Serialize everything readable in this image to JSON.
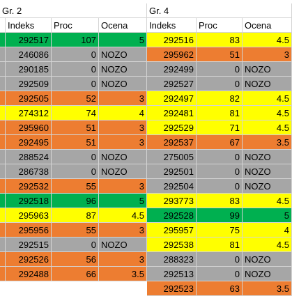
{
  "groups": [
    {
      "title": "Gr. 2",
      "headers": [
        "Indeks",
        "Proc",
        "Ocena"
      ],
      "rows": [
        {
          "indeks": "292517",
          "proc": "107",
          "ocena": "5",
          "color": "green"
        },
        {
          "indeks": "246086",
          "proc": "0",
          "ocena": "NOZO",
          "color": "gray"
        },
        {
          "indeks": "290185",
          "proc": "0",
          "ocena": "NOZO",
          "color": "gray"
        },
        {
          "indeks": "292509",
          "proc": "0",
          "ocena": "NOZO",
          "color": "gray"
        },
        {
          "indeks": "292505",
          "proc": "52",
          "ocena": "3",
          "color": "orange"
        },
        {
          "indeks": "274312",
          "proc": "74",
          "ocena": "4",
          "color": "yellow"
        },
        {
          "indeks": "295960",
          "proc": "51",
          "ocena": "3",
          "color": "orange"
        },
        {
          "indeks": "292495",
          "proc": "51",
          "ocena": "3",
          "color": "orange"
        },
        {
          "indeks": "288524",
          "proc": "0",
          "ocena": "NOZO",
          "color": "gray"
        },
        {
          "indeks": "286738",
          "proc": "0",
          "ocena": "NOZO",
          "color": "gray"
        },
        {
          "indeks": "292532",
          "proc": "55",
          "ocena": "3",
          "color": "orange"
        },
        {
          "indeks": "292518",
          "proc": "96",
          "ocena": "5",
          "color": "green"
        },
        {
          "indeks": "295963",
          "proc": "87",
          "ocena": "4.5",
          "color": "yellow"
        },
        {
          "indeks": "295956",
          "proc": "55",
          "ocena": "3",
          "color": "orange"
        },
        {
          "indeks": "292515",
          "proc": "0",
          "ocena": "NOZO",
          "color": "gray"
        },
        {
          "indeks": "292526",
          "proc": "56",
          "ocena": "3",
          "color": "orange"
        },
        {
          "indeks": "292488",
          "proc": "66",
          "ocena": "3.5",
          "color": "orange"
        }
      ]
    },
    {
      "title": "Gr. 4",
      "headers": [
        "Indeks",
        "Proc",
        "Ocena"
      ],
      "rows": [
        {
          "indeks": "292516",
          "proc": "83",
          "ocena": "4.5",
          "color": "yellow"
        },
        {
          "indeks": "295962",
          "proc": "51",
          "ocena": "3",
          "color": "orange"
        },
        {
          "indeks": "292499",
          "proc": "0",
          "ocena": "NOZO",
          "color": "gray"
        },
        {
          "indeks": "292527",
          "proc": "0",
          "ocena": "NOZO",
          "color": "gray"
        },
        {
          "indeks": "292497",
          "proc": "82",
          "ocena": "4.5",
          "color": "yellow"
        },
        {
          "indeks": "292481",
          "proc": "81",
          "ocena": "4.5",
          "color": "yellow"
        },
        {
          "indeks": "292529",
          "proc": "71",
          "ocena": "4.5",
          "color": "yellow"
        },
        {
          "indeks": "292537",
          "proc": "67",
          "ocena": "3.5",
          "color": "orange"
        },
        {
          "indeks": "275005",
          "proc": "0",
          "ocena": "NOZO",
          "color": "gray"
        },
        {
          "indeks": "292501",
          "proc": "0",
          "ocena": "NOZO",
          "color": "gray"
        },
        {
          "indeks": "292504",
          "proc": "0",
          "ocena": "NOZO",
          "color": "gray"
        },
        {
          "indeks": "293773",
          "proc": "83",
          "ocena": "4.5",
          "color": "yellow"
        },
        {
          "indeks": "292528",
          "proc": "99",
          "ocena": "5",
          "color": "green"
        },
        {
          "indeks": "295957",
          "proc": "75",
          "ocena": "4",
          "color": "yellow"
        },
        {
          "indeks": "292538",
          "proc": "81",
          "ocena": "4.5",
          "color": "yellow"
        },
        {
          "indeks": "288323",
          "proc": "0",
          "ocena": "NOZO",
          "color": "gray"
        },
        {
          "indeks": "292513",
          "proc": "0",
          "ocena": "NOZO",
          "color": "gray"
        },
        {
          "indeks": "292523",
          "proc": "63",
          "ocena": "3.5",
          "color": "orange"
        }
      ]
    }
  ]
}
